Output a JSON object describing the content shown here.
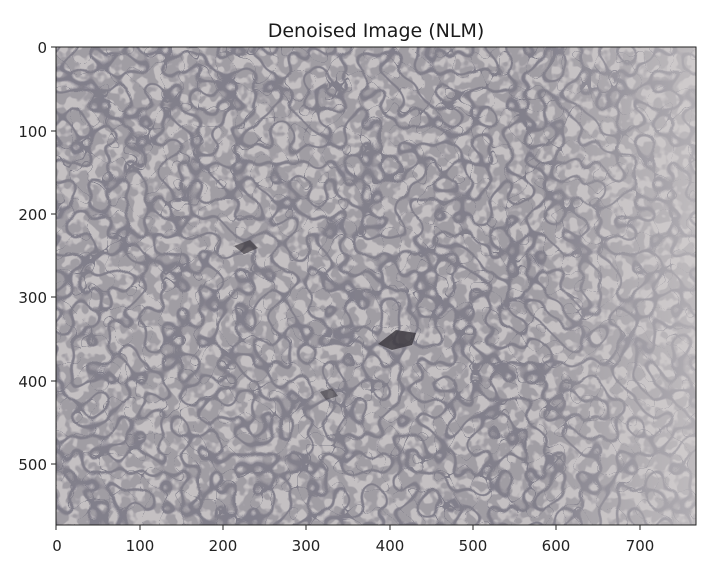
{
  "figure": {
    "title": "Denoised Image (NLM)",
    "x_ticks": [
      "0",
      "100",
      "200",
      "300",
      "400",
      "500",
      "600",
      "700"
    ],
    "y_ticks": [
      "0",
      "100",
      "200",
      "300",
      "400",
      "500"
    ],
    "image_description_colors": {
      "background": "#c4c0c2",
      "grain_boundary": "#3e3a44",
      "dark_phase": "#55525a"
    }
  }
}
